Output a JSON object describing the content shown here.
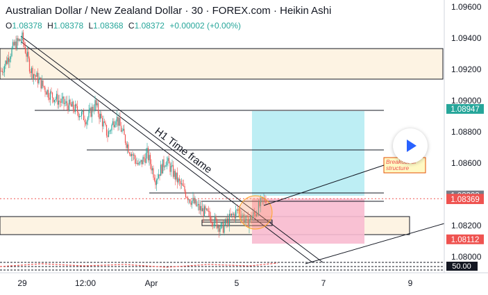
{
  "header": {
    "title": "Australian Dollar / New Zealand Dollar · 30 · FOREX.com · Heikin Ashi",
    "ohlc": {
      "o_label": "O",
      "o_value": "1.08378",
      "h_label": "H",
      "h_value": "1.08378",
      "l_label": "L",
      "l_value": "1.08368",
      "c_label": "C",
      "c_value": "1.08372",
      "change": "+0.00002 (+0.00%)"
    }
  },
  "colors": {
    "up": "#26a69a",
    "down": "#ef5350",
    "zone_fill": "#fdf3e3",
    "target_fill": "#b2ebf2",
    "stop_fill": "#f8bbd0",
    "price_up_badge": "#26a69a",
    "price_down_badge": "#ef5350",
    "grey_badge": "#787b86"
  },
  "chart_data": {
    "type": "candlestick",
    "title": "Australian Dollar / New Zealand Dollar · 30 · FOREX.com · Heikin Ashi",
    "y_range": [
      1.0789,
      1.0964
    ],
    "x_ticks": [
      "29",
      "12:00",
      "Apr",
      "5",
      "7",
      "9"
    ],
    "y_ticks": [
      "1.09600",
      "1.09400",
      "1.09200",
      "1.09000",
      "1.08800",
      "1.08600",
      "1.08200",
      "1.08000"
    ],
    "price_badges": [
      {
        "label": "1.08947",
        "kind": "up"
      },
      {
        "label": "1.08393",
        "kind": "grey"
      },
      {
        "label": "1.08372",
        "kind": "down"
      },
      {
        "label": "1.08369",
        "kind": "down"
      },
      {
        "label": "1.08112",
        "kind": "down"
      }
    ],
    "indicator_badge": "50.00",
    "annotations": [
      "H1 Time frame",
      "Breakout of structure"
    ],
    "price_path": [
      [
        1.0919,
        0
      ],
      [
        1.0935,
        12
      ],
      [
        1.094,
        20
      ],
      [
        1.092,
        28
      ],
      [
        1.0905,
        45
      ],
      [
        1.09,
        55
      ],
      [
        1.0895,
        70
      ],
      [
        1.0888,
        82
      ],
      [
        1.0898,
        90
      ],
      [
        1.0878,
        102
      ],
      [
        1.089,
        110
      ],
      [
        1.087,
        122
      ],
      [
        1.0858,
        132
      ],
      [
        1.0866,
        140
      ],
      [
        1.085,
        148
      ],
      [
        1.0862,
        158
      ],
      [
        1.0848,
        170
      ],
      [
        1.0838,
        180
      ],
      [
        1.0832,
        188
      ],
      [
        1.0826,
        200
      ],
      [
        1.0818,
        212
      ],
      [
        1.0825,
        220
      ],
      [
        1.083,
        228
      ],
      [
        1.0822,
        236
      ],
      [
        1.0828,
        244
      ],
      [
        1.0835,
        250
      ],
      [
        1.0838,
        255
      ]
    ]
  }
}
